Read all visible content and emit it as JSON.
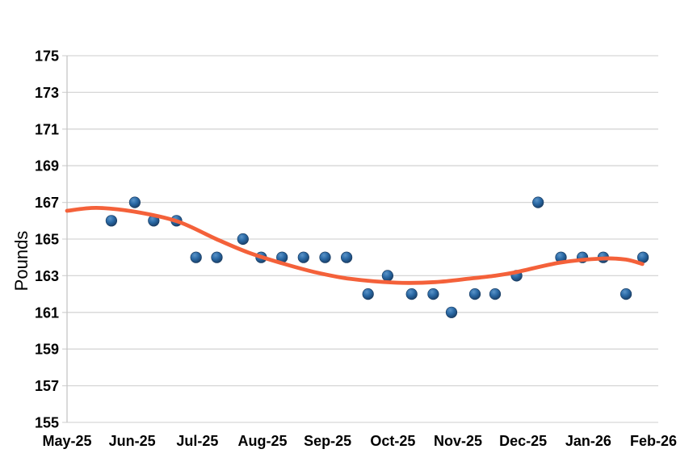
{
  "chart_data": {
    "type": "scatter",
    "title": "",
    "xlabel": "",
    "ylabel": "Pounds",
    "x_tick_labels": [
      "May-25",
      "Jun-25",
      "Jul-25",
      "Aug-25",
      "Sep-25",
      "Oct-25",
      "Nov-25",
      "Dec-25",
      "Jan-26",
      "Feb-26"
    ],
    "y_ticks": [
      155,
      157,
      159,
      161,
      163,
      165,
      167,
      169,
      171,
      173,
      175
    ],
    "ylim": [
      155,
      175
    ],
    "xlim": [
      0,
      9.07
    ],
    "grid": "horizontal-only",
    "legend": "none",
    "series": [
      {
        "name": "weight-readings",
        "type": "scatter",
        "marker_color": "#2A69A5",
        "marker_edge": "#16375C",
        "marker_highlight": "#5B94C8",
        "points": [
          [
            0.68,
            166
          ],
          [
            1.04,
            167
          ],
          [
            1.33,
            166
          ],
          [
            1.68,
            166
          ],
          [
            1.98,
            164
          ],
          [
            2.3,
            164
          ],
          [
            2.7,
            165
          ],
          [
            2.98,
            164
          ],
          [
            3.3,
            164
          ],
          [
            3.63,
            164
          ],
          [
            3.96,
            164
          ],
          [
            4.29,
            164
          ],
          [
            4.62,
            162
          ],
          [
            4.92,
            163
          ],
          [
            5.29,
            162
          ],
          [
            5.62,
            162
          ],
          [
            5.9,
            161
          ],
          [
            6.26,
            162
          ],
          [
            6.57,
            162
          ],
          [
            6.9,
            163
          ],
          [
            7.23,
            167
          ],
          [
            7.58,
            164
          ],
          [
            7.91,
            164
          ],
          [
            8.23,
            164
          ],
          [
            8.58,
            162
          ],
          [
            8.84,
            164
          ]
        ]
      },
      {
        "name": "trend",
        "type": "smooth-line",
        "color": "#F4613A",
        "points": [
          [
            0.0,
            166.54
          ],
          [
            0.45,
            166.7
          ],
          [
            1.02,
            166.5
          ],
          [
            1.69,
            165.97
          ],
          [
            2.29,
            165.0
          ],
          [
            2.78,
            164.27
          ],
          [
            3.3,
            163.68
          ],
          [
            3.8,
            163.2
          ],
          [
            4.35,
            162.83
          ],
          [
            5.05,
            162.62
          ],
          [
            5.65,
            162.65
          ],
          [
            6.2,
            162.85
          ],
          [
            6.57,
            163.0
          ],
          [
            6.9,
            163.2
          ],
          [
            7.57,
            163.72
          ],
          [
            8.22,
            163.94
          ],
          [
            8.58,
            163.88
          ],
          [
            8.83,
            163.64
          ]
        ]
      }
    ],
    "colors": {
      "background": "#FFFFFF",
      "gridline": "#D6D6D6",
      "axis_line": "#C6C6C6",
      "tick_text": "#000000"
    }
  }
}
